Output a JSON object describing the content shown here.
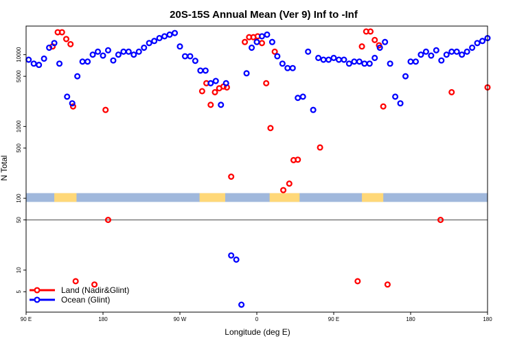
{
  "chart_data": {
    "type": "scatter",
    "title": "20S-15S Annual Mean (Ver 9)   Inf to -Inf",
    "xlabel": "Longitude (deg E)",
    "ylabel": "N Total",
    "xscale": "linear",
    "yscale": "log",
    "xlim": [
      0,
      540
    ],
    "ylim": [
      2.6,
      25000
    ],
    "xticks": [
      {
        "value": 0,
        "label": "90 E"
      },
      {
        "value": 90,
        "label": "180"
      },
      {
        "value": 180,
        "label": "90 W"
      },
      {
        "value": 270,
        "label": "0"
      },
      {
        "value": 360,
        "label": "90 E"
      },
      {
        "value": 450,
        "label": "180"
      },
      {
        "value": 540,
        "label": "180"
      }
    ],
    "yticks": [
      {
        "value": 5,
        "label": "5"
      },
      {
        "value": 10,
        "label": "10"
      },
      {
        "value": 50,
        "label": "50"
      },
      {
        "value": 100,
        "label": "100"
      },
      {
        "value": 500,
        "label": "500"
      },
      {
        "value": 1000,
        "label": "1000"
      },
      {
        "value": 5000,
        "label": "5000"
      },
      {
        "value": 10000,
        "label": "10000"
      }
    ],
    "reference_line": {
      "y": 50,
      "color": "#444444"
    },
    "surface_band": {
      "y_range": [
        89,
        118
      ],
      "ocean_color": "#a0b8dc",
      "land_color": "#ffd878",
      "land_segments": [
        [
          33,
          59
        ],
        [
          203,
          233
        ],
        [
          285,
          320
        ],
        [
          393,
          418
        ]
      ]
    },
    "legend": {
      "location": "lower-left"
    },
    "series": [
      {
        "name": "Land (Nadir&Glint)",
        "color": "#ff0000",
        "x": [
          31,
          37,
          42,
          47,
          52,
          55,
          58,
          80,
          93,
          96,
          206,
          211,
          216,
          221,
          226,
          231,
          235,
          240,
          256,
          261,
          266,
          271,
          276,
          281,
          286,
          291,
          301,
          308,
          313,
          318,
          344,
          388,
          393,
          398,
          403,
          408,
          413,
          418,
          423,
          485,
          498,
          540
        ],
        "y": [
          13000,
          20500,
          20500,
          16500,
          14000,
          1900,
          7,
          6.3,
          1700,
          50,
          3100,
          4000,
          2000,
          3000,
          3400,
          3600,
          3500,
          200,
          15000,
          17500,
          17500,
          18000,
          14500,
          4000,
          950,
          11000,
          130,
          160,
          340,
          345,
          510,
          7,
          13000,
          21000,
          21000,
          16000,
          13500,
          1900,
          6.3,
          50,
          3000,
          3500
        ]
      },
      {
        "name": "Ocean (Glint)",
        "color": "#0000ff",
        "x": [
          3,
          9,
          15,
          21,
          27,
          33,
          39,
          48,
          54,
          60,
          66,
          72,
          78,
          84,
          90,
          96,
          102,
          108,
          114,
          120,
          126,
          132,
          138,
          144,
          150,
          156,
          162,
          168,
          174,
          180,
          186,
          192,
          198,
          204,
          210,
          216,
          222,
          228,
          234,
          240,
          246,
          252,
          258,
          264,
          270,
          276,
          282,
          288,
          294,
          300,
          306,
          312,
          318,
          324,
          330,
          336,
          342,
          348,
          354,
          360,
          366,
          372,
          378,
          384,
          390,
          396,
          402,
          408,
          414,
          420,
          426,
          432,
          438,
          444,
          450,
          456,
          462,
          468,
          474,
          480,
          486,
          492,
          498,
          504,
          510,
          516,
          522,
          528,
          534,
          540
        ],
        "y": [
          8500,
          7500,
          7200,
          8800,
          12500,
          14500,
          7500,
          2600,
          2100,
          5000,
          8000,
          8000,
          10000,
          11000,
          9700,
          11500,
          8300,
          10000,
          11000,
          11000,
          10000,
          11000,
          12500,
          14500,
          15500,
          17000,
          18000,
          19000,
          20000,
          13000,
          9500,
          9500,
          8200,
          6000,
          6000,
          4000,
          4300,
          2000,
          4000,
          16,
          14,
          3.3,
          5500,
          12500,
          15000,
          18000,
          19000,
          15000,
          9500,
          7500,
          6500,
          6500,
          2500,
          2600,
          11000,
          1700,
          9000,
          8500,
          8500,
          9000,
          8500,
          8500,
          7500,
          8000,
          8000,
          7500,
          7500,
          9000,
          12500,
          15000,
          7500,
          2600,
          2100,
          5000,
          8000,
          8000,
          10000,
          11000,
          9700,
          11500,
          8300,
          10000,
          11000,
          11000,
          10000,
          11000,
          12500,
          14500,
          15500,
          17000
        ]
      }
    ]
  }
}
